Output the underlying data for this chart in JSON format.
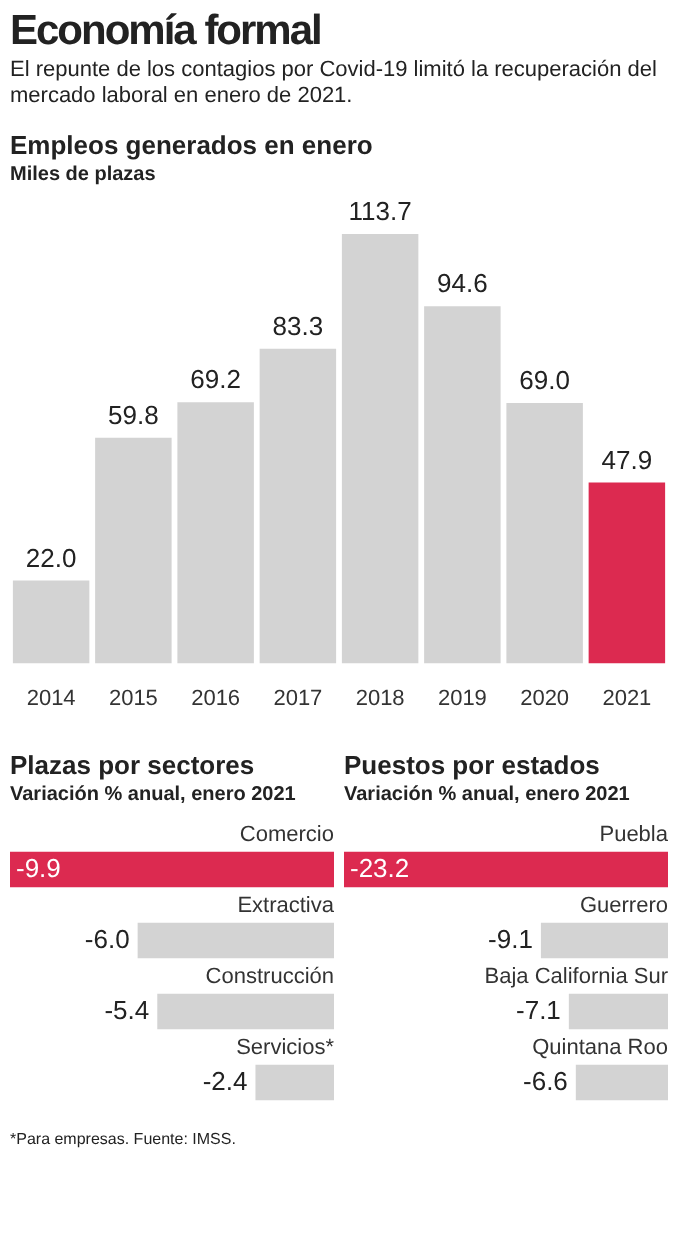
{
  "chart_data": [
    {
      "type": "other",
      "title": "Economía formal",
      "subtitle": "El repunte de los contagios por Covid-19 limitó la recuperación del mercado laboral en enero de 2021."
    },
    {
      "type": "bar",
      "title": "Empleos generados en enero",
      "subtitle": "Miles de plazas",
      "categories": [
        "2014",
        "2015",
        "2016",
        "2017",
        "2018",
        "2019",
        "2020",
        "2021"
      ],
      "values": [
        22.0,
        59.8,
        69.2,
        83.3,
        113.7,
        94.6,
        69.0,
        47.9
      ],
      "value_labels": [
        "22.0",
        "59.8",
        "69.2",
        "83.3",
        "113.7",
        "94.6",
        "69.0",
        "47.9"
      ],
      "colors": [
        "#d3d3d3",
        "#d3d3d3",
        "#d3d3d3",
        "#d3d3d3",
        "#d3d3d3",
        "#d3d3d3",
        "#d3d3d3",
        "#dc2a50"
      ],
      "tick_labels": "x"
    },
    {
      "type": "bar",
      "orientation": "horizontal",
      "title": "Plazas por sectores",
      "subtitle": "Variación % anual, enero 2021",
      "categories": [
        "Comercio",
        "Extractiva",
        "Construcción",
        "Servicios*"
      ],
      "values": [
        -9.9,
        -6.0,
        -5.4,
        -2.4
      ],
      "value_labels": [
        "-9.9",
        "-6.0",
        "-5.4",
        "-2.4"
      ],
      "colors": [
        "#dc2a50",
        "#d3d3d3",
        "#d3d3d3",
        "#d3d3d3"
      ],
      "tick_labels": "y"
    },
    {
      "type": "bar",
      "orientation": "horizontal",
      "title": "Puestos por estados",
      "subtitle": "Variación % anual, enero 2021",
      "categories": [
        "Puebla",
        "Guerrero",
        "Baja California Sur",
        "Quintana Roo"
      ],
      "values": [
        -23.2,
        -9.1,
        -7.1,
        -6.6
      ],
      "value_labels": [
        "-23.2",
        "-9.1",
        "-7.1",
        "-6.6"
      ],
      "colors": [
        "#dc2a50",
        "#d3d3d3",
        "#d3d3d3",
        "#d3d3d3"
      ],
      "tick_labels": "y",
      "annotations": [
        "*Para empresas. Fuente: IMSS."
      ]
    }
  ]
}
